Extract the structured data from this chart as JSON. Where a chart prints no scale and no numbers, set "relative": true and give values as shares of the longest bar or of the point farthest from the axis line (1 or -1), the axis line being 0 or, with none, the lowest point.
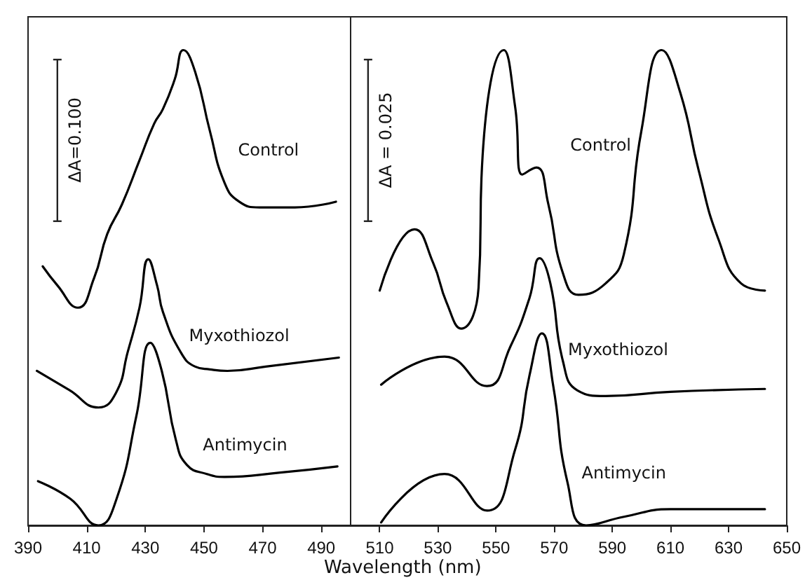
{
  "chart_data": [
    {
      "type": "line",
      "relative": true,
      "marker": "none",
      "tick_labels": "x",
      "xlim": [
        390,
        500
      ],
      "xticks": [
        390,
        410,
        430,
        450,
        470,
        490
      ],
      "annotations": [
        "ΔA=0.100"
      ],
      "series": [
        {
          "name": "Control",
          "color": "#000000",
          "x": [
            395,
            400,
            407,
            412.5,
            417,
            422,
            428,
            433,
            436,
            440,
            443,
            447,
            452,
            457,
            462,
            469,
            481,
            495
          ],
          "values": [
            0.545,
            0.505,
            0.458,
            0.52,
            0.613,
            0.675,
            0.768,
            0.845,
            0.876,
            0.938,
            1.0,
            0.954,
            0.83,
            0.721,
            0.681,
            0.669,
            0.669,
            0.681
          ]
        },
        {
          "name": "Myxothiozol",
          "color": "#000000",
          "x": [
            393,
            404,
            414,
            420,
            424,
            428,
            431,
            434,
            436,
            442,
            447,
            452,
            458,
            471,
            496
          ],
          "values": [
            0.325,
            0.285,
            0.248,
            0.279,
            0.365,
            0.458,
            0.56,
            0.505,
            0.449,
            0.365,
            0.334,
            0.328,
            0.325,
            0.334,
            0.353
          ]
        },
        {
          "name": "Antimycin",
          "color": "#000000",
          "x": [
            393.4,
            404.4,
            414,
            420.2,
            427,
            431.7,
            435.6,
            440.4,
            444.2,
            451,
            457,
            476,
            495.5
          ],
          "values": [
            0.093,
            0.056,
            0.0,
            0.056,
            0.232,
            0.384,
            0.325,
            0.18,
            0.127,
            0.108,
            0.102,
            0.111,
            0.124
          ]
        }
      ]
    },
    {
      "type": "line",
      "relative": true,
      "marker": "none",
      "tick_labels": "x",
      "xlim": [
        500,
        650
      ],
      "xticks": [
        510,
        530,
        550,
        570,
        590,
        610,
        630,
        650
      ],
      "xlabel": "Wavelength (nm)",
      "annotations": [
        "ΔA = 0.025"
      ],
      "series": [
        {
          "name": "Control",
          "color": "#000000",
          "x": [
            510,
            522,
            528.4,
            533,
            538,
            544,
            545.4,
            552.7,
            556.6,
            559,
            563.9,
            568,
            573,
            578.4,
            587.7,
            594,
            600,
            607,
            613.4,
            619.7,
            626.5,
            634.3,
            642.5
          ],
          "values": [
            0.494,
            0.623,
            0.552,
            0.469,
            0.414,
            0.5,
            0.778,
            1.0,
            0.88,
            0.738,
            0.753,
            0.676,
            0.531,
            0.485,
            0.509,
            0.571,
            0.83,
            1.0,
            0.91,
            0.747,
            0.602,
            0.509,
            0.494
          ]
        },
        {
          "name": "Myxothiozol",
          "color": "#000000",
          "x": [
            510.5,
            532.3,
            546.9,
            555,
            561.5,
            565,
            568.7,
            573,
            578,
            587.7,
            610,
            642.5
          ],
          "values": [
            0.296,
            0.355,
            0.293,
            0.377,
            0.478,
            0.562,
            0.509,
            0.346,
            0.284,
            0.272,
            0.281,
            0.287
          ]
        },
        {
          "name": "Antimycin",
          "color": "#000000",
          "x": [
            510.5,
            532.3,
            547,
            556.6,
            561.5,
            565.8,
            569.7,
            574.6,
            581,
            594,
            610,
            642.5
          ],
          "values": [
            0.006,
            0.108,
            0.031,
            0.16,
            0.315,
            0.404,
            0.293,
            0.09,
            0.0,
            0.018,
            0.034,
            0.034
          ]
        }
      ]
    }
  ]
}
